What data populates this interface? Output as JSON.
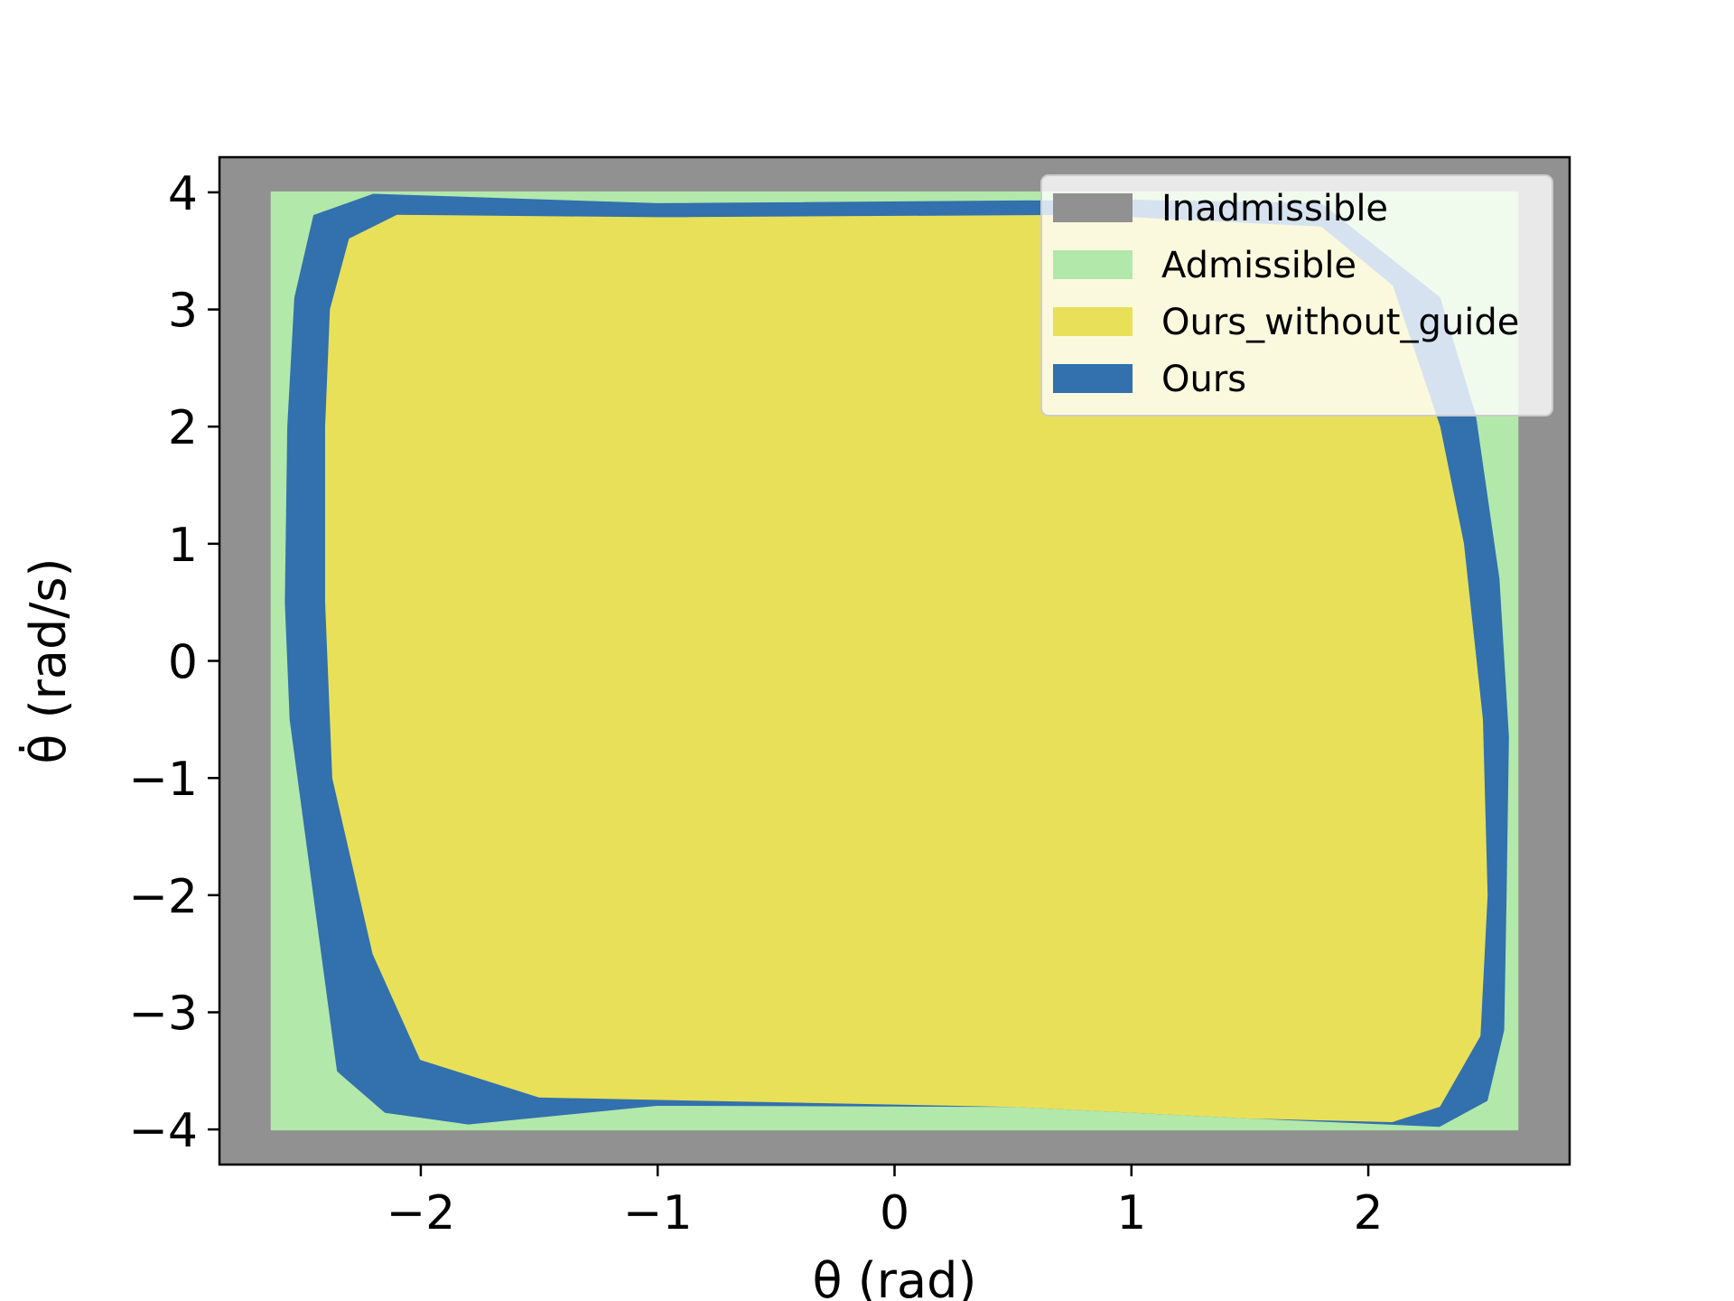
{
  "chart_data": {
    "type": "heatmap",
    "title": "",
    "xlabel": "θ (rad)",
    "ylabel": "θ̇ (rad/s)",
    "xlim": [
      -2.85,
      2.85
    ],
    "ylim": [
      -4.3,
      4.3
    ],
    "xticks": [
      -2,
      -1,
      0,
      1,
      2
    ],
    "yticks": [
      -4,
      -3,
      -2,
      -1,
      0,
      1,
      2,
      3,
      4
    ],
    "xtick_labels": [
      "−2",
      "−1",
      "0",
      "1",
      "2"
    ],
    "ytick_labels": [
      "−4",
      "−3",
      "−2",
      "−1",
      "0",
      "1",
      "2",
      "3",
      "4"
    ],
    "grid": false,
    "legend_position": "upper right",
    "background_region": {
      "name": "Inadmissible",
      "color": "#919191"
    },
    "series": [
      {
        "name": "Inadmissible",
        "color": "#919191",
        "points": [
          [
            -2.85,
            -4.3
          ],
          [
            2.85,
            -4.3
          ],
          [
            2.85,
            4.3
          ],
          [
            -2.85,
            4.3
          ]
        ]
      },
      {
        "name": "Admissible",
        "color": "#b2e8aa",
        "points": [
          [
            -2.63,
            -4.0
          ],
          [
            2.63,
            -4.0
          ],
          [
            2.63,
            4.0
          ],
          [
            -2.63,
            4.0
          ]
        ]
      },
      {
        "name": "Ours",
        "color": "#3270ae",
        "points": [
          [
            -2.2,
            3.98
          ],
          [
            -1.0,
            3.9
          ],
          [
            1.0,
            3.93
          ],
          [
            1.8,
            3.9
          ],
          [
            2.3,
            3.1
          ],
          [
            2.45,
            2.1
          ],
          [
            2.55,
            0.7
          ],
          [
            2.59,
            -0.65
          ],
          [
            2.58,
            -2.0
          ],
          [
            2.57,
            -3.15
          ],
          [
            2.5,
            -3.75
          ],
          [
            2.3,
            -3.97
          ],
          [
            1.5,
            -3.9
          ],
          [
            0.5,
            -3.8
          ],
          [
            -1.0,
            -3.79
          ],
          [
            -1.8,
            -3.95
          ],
          [
            -2.15,
            -3.85
          ],
          [
            -2.35,
            -3.5
          ],
          [
            -2.45,
            -2.0
          ],
          [
            -2.55,
            -0.5
          ],
          [
            -2.57,
            0.5
          ],
          [
            -2.56,
            2.0
          ],
          [
            -2.53,
            3.1
          ],
          [
            -2.45,
            3.8
          ]
        ]
      },
      {
        "name": "Ours_without_guide",
        "color": "#e8e058",
        "points": [
          [
            -2.1,
            3.8
          ],
          [
            -1.0,
            3.78
          ],
          [
            0.8,
            3.8
          ],
          [
            1.8,
            3.7
          ],
          [
            2.1,
            3.2
          ],
          [
            2.3,
            2.0
          ],
          [
            2.4,
            1.0
          ],
          [
            2.48,
            -0.5
          ],
          [
            2.5,
            -2.0
          ],
          [
            2.47,
            -3.2
          ],
          [
            2.3,
            -3.8
          ],
          [
            2.1,
            -3.93
          ],
          [
            1.5,
            -3.9
          ],
          [
            0.5,
            -3.8
          ],
          [
            -1.5,
            -3.72
          ],
          [
            -2.0,
            -3.4
          ],
          [
            -2.2,
            -2.5
          ],
          [
            -2.37,
            -1.0
          ],
          [
            -2.4,
            0.5
          ],
          [
            -2.4,
            2.0
          ],
          [
            -2.38,
            3.0
          ],
          [
            -2.3,
            3.6
          ]
        ]
      }
    ],
    "legend": [
      {
        "label": "Inadmissible",
        "color": "#919191"
      },
      {
        "label": "Admissible",
        "color": "#b2e8aa"
      },
      {
        "label": "Ours_without_guide",
        "color": "#e8e058"
      },
      {
        "label": "Ours",
        "color": "#3270ae"
      }
    ]
  }
}
